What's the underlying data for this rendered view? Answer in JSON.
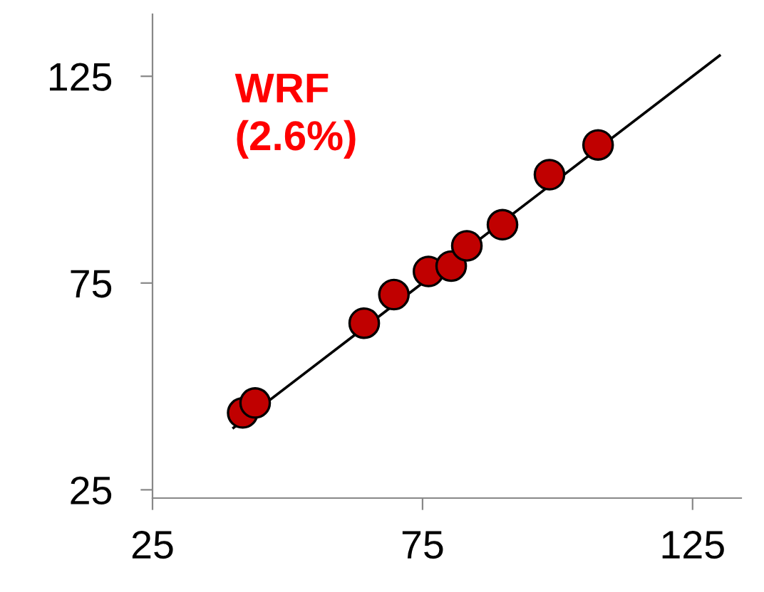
{
  "chart_data": {
    "type": "scatter",
    "annotations": [
      "WRF\n(2.6%)"
    ],
    "series": [
      {
        "color": "#c00000",
        "marker": "circle",
        "x": [
          41.7,
          44.0,
          64.2,
          69.7,
          76.1,
          80.3,
          83.2,
          89.8,
          98.5,
          107.5
        ],
        "values": [
          43.6,
          46.0,
          65.3,
          72.2,
          77.8,
          79.1,
          84.0,
          89.1,
          101.2,
          108.4
        ]
      },
      {
        "type": "line",
        "color": "#000000",
        "marker": "none",
        "line_style": "solid",
        "x": [
          40,
          130
        ],
        "values": [
          40,
          130
        ]
      }
    ],
    "xlim": [
      25,
      134
    ],
    "ylim": [
      23,
      140
    ],
    "xticks": [
      25,
      75,
      125
    ],
    "yticks": [
      25,
      75,
      125
    ],
    "grid": false
  }
}
